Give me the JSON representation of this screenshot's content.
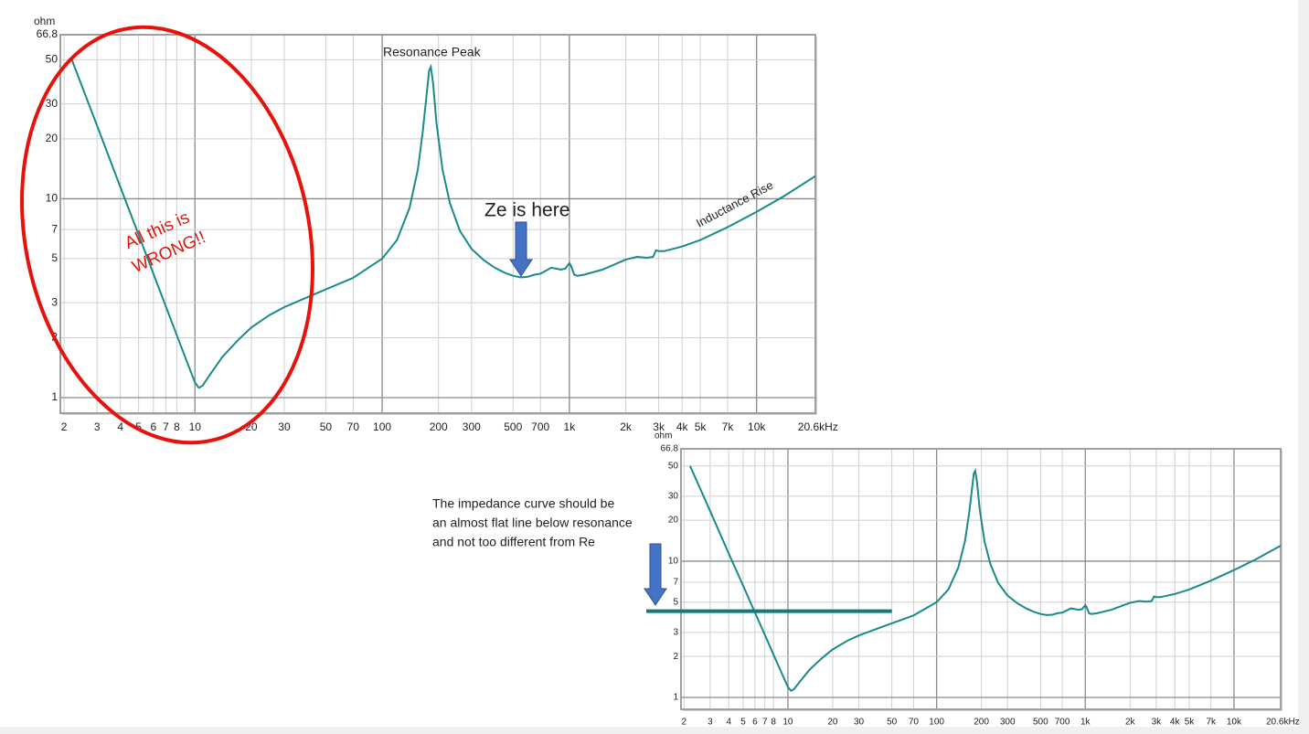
{
  "chart_data": [
    {
      "type": "line",
      "ylabel": "ohm",
      "xscale": "log",
      "yscale": "log",
      "grid": true,
      "color": "#1a8a8a",
      "xlim": [
        1.91,
        20600
      ],
      "ylim": [
        0.835,
        66.8
      ],
      "xticks": [
        2,
        3,
        4,
        5,
        6,
        7,
        8,
        10,
        20,
        30,
        50,
        70,
        100,
        200,
        300,
        500,
        700,
        {
          "value": 1000,
          "label": "1k"
        },
        {
          "value": 2000,
          "label": "2k"
        },
        {
          "value": 3000,
          "label": "3k"
        },
        {
          "value": 4000,
          "label": "4k"
        },
        {
          "value": 5000,
          "label": "5k"
        },
        {
          "value": 7000,
          "label": "7k"
        },
        {
          "value": 10000,
          "label": "10k"
        },
        {
          "value": 20600,
          "label": "20.6kHz"
        }
      ],
      "yticks": [
        1,
        2,
        3,
        5,
        7,
        10,
        20,
        30,
        50,
        66.8
      ],
      "x": [
        2.2,
        3,
        4,
        5,
        6,
        7,
        8,
        9,
        10,
        10.5,
        11,
        12,
        14,
        17,
        20,
        25,
        30,
        40,
        50,
        70,
        100,
        120,
        140,
        155,
        165,
        172,
        178,
        182,
        187,
        195,
        210,
        230,
        260,
        300,
        350,
        400,
        450,
        500,
        550,
        600,
        650,
        700,
        750,
        800,
        850,
        900,
        950,
        1000,
        1020,
        1060,
        1100,
        1200,
        1500,
        2000,
        2300,
        2600,
        2800,
        2900,
        3000,
        3200,
        4000,
        5000,
        7000,
        10000,
        14000,
        20600
      ],
      "values": [
        50,
        23.3,
        11.4,
        6.6,
        4.2,
        2.87,
        2.06,
        1.54,
        1.19,
        1.12,
        1.15,
        1.3,
        1.6,
        1.95,
        2.25,
        2.6,
        2.85,
        3.2,
        3.5,
        4.0,
        5.0,
        6.2,
        9,
        14,
        22,
        32,
        44,
        46,
        38,
        24,
        14,
        9.5,
        6.9,
        5.6,
        4.9,
        4.5,
        4.25,
        4.1,
        4.02,
        4.05,
        4.15,
        4.2,
        4.35,
        4.5,
        4.45,
        4.4,
        4.45,
        4.75,
        4.6,
        4.15,
        4.1,
        4.15,
        4.4,
        4.95,
        5.1,
        5.05,
        5.1,
        5.5,
        5.45,
        5.45,
        5.75,
        6.2,
        7.2,
        8.6,
        10.3,
        13
      ],
      "annotations": [
        "Resonance Peak",
        "Ze is here",
        "Inductance Rise"
      ],
      "warning": [
        "All this is",
        "WRONG!!"
      ]
    },
    {
      "type": "line",
      "ylabel": "ohm",
      "xscale": "log",
      "yscale": "log",
      "grid": true,
      "color": "#1a8a8a",
      "xlim": [
        1.91,
        20600
      ],
      "ylim": [
        0.818,
        66.8
      ],
      "xticks": [
        2,
        3,
        4,
        5,
        6,
        7,
        8,
        10,
        20,
        30,
        50,
        70,
        100,
        200,
        300,
        500,
        700,
        {
          "value": 1000,
          "label": "1k"
        },
        {
          "value": 2000,
          "label": "2k"
        },
        {
          "value": 3000,
          "label": "3k"
        },
        {
          "value": 4000,
          "label": "4k"
        },
        {
          "value": 5000,
          "label": "5k"
        },
        {
          "value": 7000,
          "label": "7k"
        },
        {
          "value": 10000,
          "label": "10k"
        },
        {
          "value": 20600,
          "label": "20.6kHz"
        }
      ],
      "yticks": [
        1,
        2,
        3,
        5,
        7,
        10,
        20,
        30,
        50,
        66.8
      ],
      "x": [
        2.2,
        3,
        4,
        5,
        6,
        7,
        8,
        9,
        10,
        10.5,
        11,
        12,
        14,
        17,
        20,
        25,
        30,
        40,
        50,
        70,
        100,
        120,
        140,
        155,
        165,
        172,
        178,
        182,
        187,
        195,
        210,
        230,
        260,
        300,
        350,
        400,
        450,
        500,
        550,
        600,
        650,
        700,
        750,
        800,
        850,
        900,
        950,
        1000,
        1020,
        1060,
        1100,
        1200,
        1500,
        2000,
        2300,
        2600,
        2800,
        2900,
        3000,
        3200,
        4000,
        5000,
        7000,
        10000,
        14000,
        20600
      ],
      "values": [
        50,
        23.3,
        11.4,
        6.6,
        4.2,
        2.87,
        2.06,
        1.54,
        1.19,
        1.12,
        1.15,
        1.3,
        1.6,
        1.95,
        2.25,
        2.6,
        2.85,
        3.2,
        3.5,
        4.0,
        5.0,
        6.2,
        9,
        14,
        22,
        32,
        44,
        46,
        38,
        24,
        14,
        9.5,
        6.9,
        5.6,
        4.9,
        4.5,
        4.25,
        4.1,
        4.02,
        4.05,
        4.15,
        4.2,
        4.35,
        4.5,
        4.45,
        4.4,
        4.45,
        4.75,
        4.6,
        4.15,
        4.1,
        4.15,
        4.4,
        4.95,
        5.1,
        5.05,
        5.1,
        5.5,
        5.45,
        5.45,
        5.75,
        6.2,
        7.2,
        8.6,
        10.3,
        13
      ],
      "note": [
        "The impedance curve should be",
        "an almost flat line below resonance",
        "and not too different from Re"
      ],
      "re_line": {
        "value": 4.3,
        "x_end": 50
      }
    }
  ]
}
